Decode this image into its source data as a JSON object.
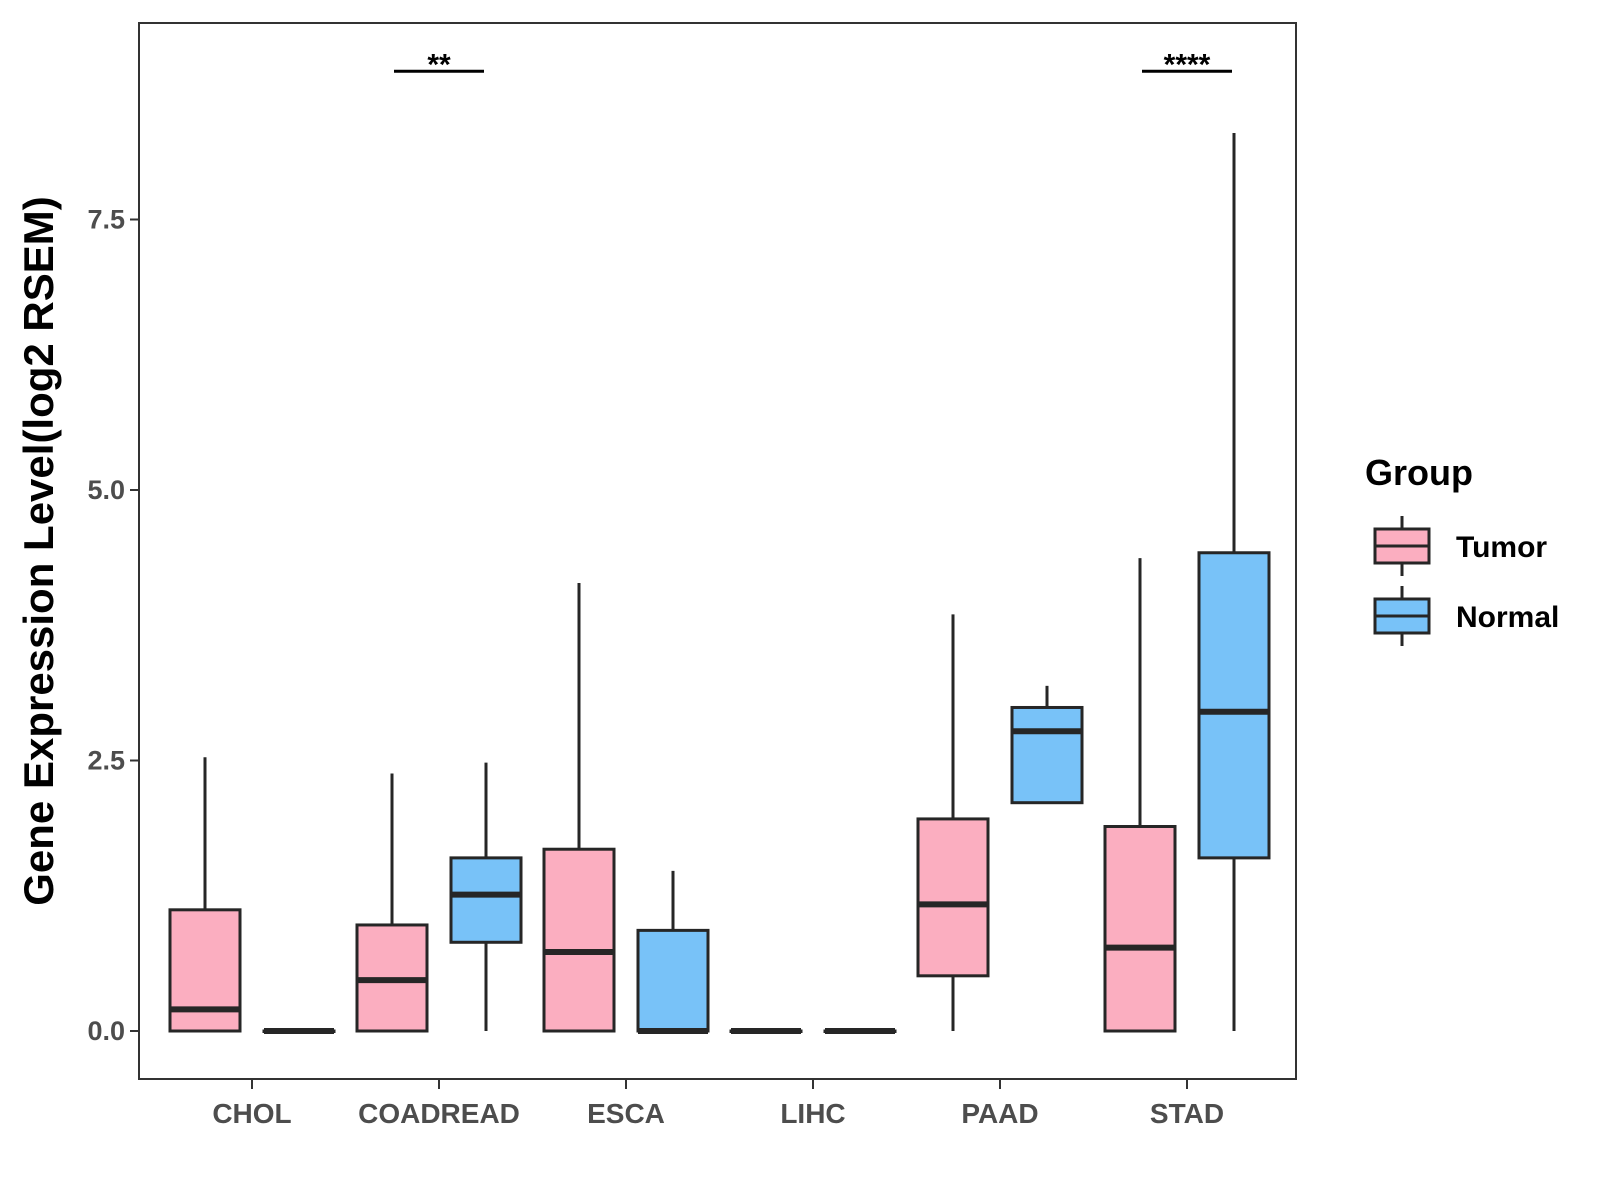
{
  "chart_data": {
    "type": "boxplot",
    "title": "",
    "xlabel": "",
    "ylabel": "Gene Expression Level(log2 RSEM)",
    "ylim": [
      -0.43,
      9.3
    ],
    "yticks": [
      0.0,
      2.5,
      5.0,
      7.5
    ],
    "ytick_labels": [
      "0.0",
      "2.5",
      "5.0",
      "7.5"
    ],
    "categories": [
      "CHOL",
      "COADREAD",
      "ESCA",
      "LIHC",
      "PAAD",
      "STAD"
    ],
    "legend": {
      "title": "Group",
      "position": "right",
      "entries": [
        {
          "name": "Tumor",
          "color": "#fbaec0"
        },
        {
          "name": "Normal",
          "color": "#78c2f8"
        }
      ]
    },
    "series": [
      {
        "name": "Tumor",
        "color": "#fbaec0",
        "boxes": [
          {
            "category": "CHOL",
            "min": 0.0,
            "q1": 0.0,
            "median": 0.2,
            "q3": 1.12,
            "max": 2.53
          },
          {
            "category": "COADREAD",
            "min": 0.0,
            "q1": 0.0,
            "median": 0.47,
            "q3": 0.98,
            "max": 2.38
          },
          {
            "category": "ESCA",
            "min": 0.0,
            "q1": 0.0,
            "median": 0.73,
            "q3": 1.68,
            "max": 4.14
          },
          {
            "category": "LIHC",
            "min": 0.0,
            "q1": 0.0,
            "median": 0.0,
            "q3": 0.0,
            "max": 0.0
          },
          {
            "category": "PAAD",
            "min": 0.0,
            "q1": 0.51,
            "median": 1.17,
            "q3": 1.96,
            "max": 3.85
          },
          {
            "category": "STAD",
            "min": 0.0,
            "q1": 0.0,
            "median": 0.77,
            "q3": 1.89,
            "max": 4.37
          }
        ]
      },
      {
        "name": "Normal",
        "color": "#78c2f8",
        "boxes": [
          {
            "category": "CHOL",
            "min": 0.0,
            "q1": 0.0,
            "median": 0.0,
            "q3": 0.0,
            "max": 0.0
          },
          {
            "category": "COADREAD",
            "min": 0.0,
            "q1": 0.82,
            "median": 1.26,
            "q3": 1.6,
            "max": 2.48
          },
          {
            "category": "ESCA",
            "min": 0.0,
            "q1": 0.0,
            "median": 0.0,
            "q3": 0.93,
            "max": 1.48
          },
          {
            "category": "LIHC",
            "min": 0.0,
            "q1": 0.0,
            "median": 0.0,
            "q3": 0.0,
            "max": 0.0
          },
          {
            "category": "PAAD",
            "min": 2.11,
            "q1": 2.11,
            "median": 2.77,
            "q3": 2.99,
            "max": 3.19
          },
          {
            "category": "STAD",
            "min": 0.0,
            "q1": 1.6,
            "median": 2.95,
            "q3": 4.42,
            "max": 8.3
          }
        ]
      }
    ],
    "significance": [
      {
        "category": "COADREAD",
        "label": "**",
        "y": 8.87
      },
      {
        "category": "STAD",
        "label": "****",
        "y": 8.87
      }
    ]
  }
}
